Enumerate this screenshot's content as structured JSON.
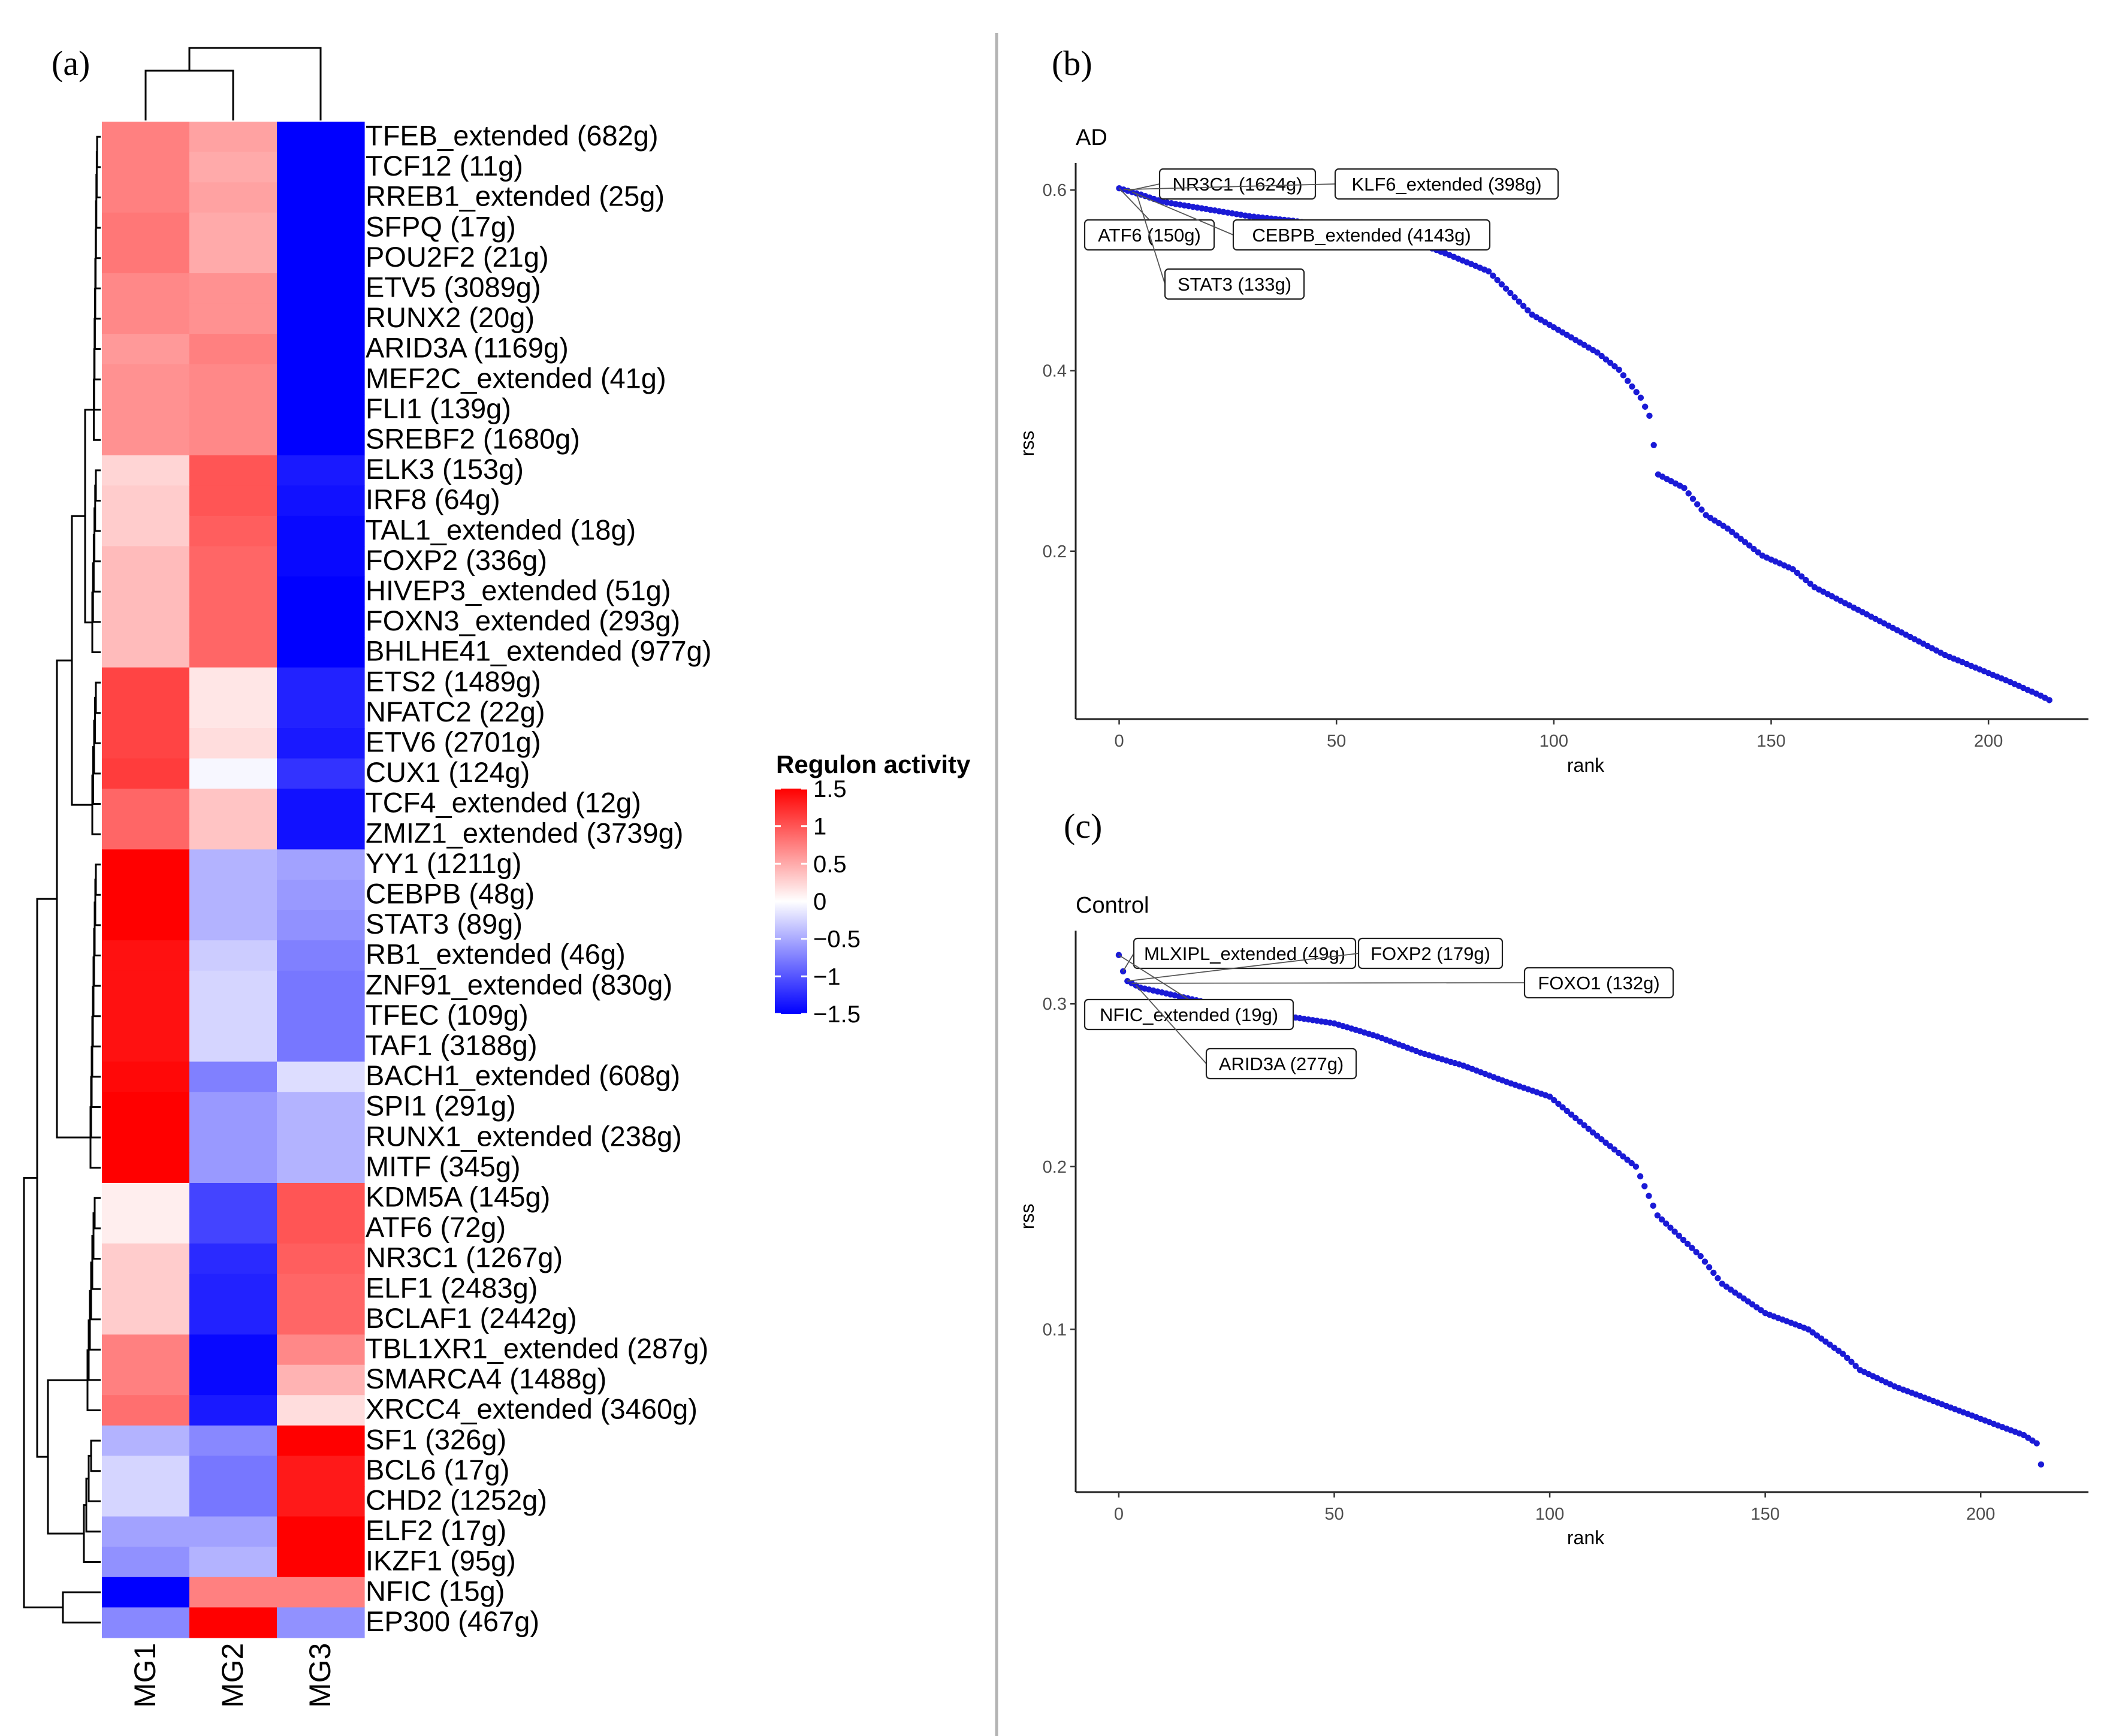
{
  "panels": {
    "a": {
      "label": "(a)"
    },
    "b": {
      "label": "(b)"
    },
    "c": {
      "label": "(c)"
    }
  },
  "colors": {
    "high": "#ff0000",
    "mid": "#ffffff",
    "low": "#0000ff",
    "point": "#1a1ad6",
    "divider": "#b4b4b4",
    "axis": "#222222",
    "tick_text": "#4d4d4d"
  },
  "chart_data": [
    {
      "type": "heatmap",
      "panel": "(a)",
      "columns": [
        "MG1",
        "MG2",
        "MG3"
      ],
      "rows": [
        {
          "name": "TFEB_extended (682g)",
          "values": [
            0.75,
            0.55,
            -1.5
          ]
        },
        {
          "name": "TCF12 (11g)",
          "values": [
            0.75,
            0.5,
            -1.5
          ]
        },
        {
          "name": "RREB1_extended (25g)",
          "values": [
            0.75,
            0.55,
            -1.5
          ]
        },
        {
          "name": "SFPQ (17g)",
          "values": [
            0.8,
            0.5,
            -1.5
          ]
        },
        {
          "name": "POU2F2 (21g)",
          "values": [
            0.8,
            0.5,
            -1.5
          ]
        },
        {
          "name": "ETV5 (3089g)",
          "values": [
            0.7,
            0.65,
            -1.5
          ]
        },
        {
          "name": "RUNX2 (20g)",
          "values": [
            0.7,
            0.65,
            -1.5
          ]
        },
        {
          "name": "ARID3A (1169g)",
          "values": [
            0.6,
            0.75,
            -1.5
          ]
        },
        {
          "name": "MEF2C_extended (41g)",
          "values": [
            0.65,
            0.7,
            -1.5
          ]
        },
        {
          "name": "FLI1 (139g)",
          "values": [
            0.65,
            0.7,
            -1.5
          ]
        },
        {
          "name": "SREBF2 (1680g)",
          "values": [
            0.65,
            0.7,
            -1.5
          ]
        },
        {
          "name": "ELK3 (153g)",
          "values": [
            0.25,
            1.0,
            -1.35
          ]
        },
        {
          "name": "IRF8 (64g)",
          "values": [
            0.3,
            1.0,
            -1.4
          ]
        },
        {
          "name": "TAL1_extended (18g)",
          "values": [
            0.3,
            0.95,
            -1.45
          ]
        },
        {
          "name": "FOXP2 (336g)",
          "values": [
            0.4,
            0.9,
            -1.45
          ]
        },
        {
          "name": "HIVEP3_extended (51g)",
          "values": [
            0.4,
            0.9,
            -1.5
          ]
        },
        {
          "name": "FOXN3_extended (293g)",
          "values": [
            0.4,
            0.9,
            -1.5
          ]
        },
        {
          "name": "BHLHE41_extended (977g)",
          "values": [
            0.4,
            0.9,
            -1.5
          ]
        },
        {
          "name": "ETS2 (1489g)",
          "values": [
            1.1,
            0.15,
            -1.3
          ]
        },
        {
          "name": "NFATC2 (22g)",
          "values": [
            1.1,
            0.15,
            -1.3
          ]
        },
        {
          "name": "ETV6 (2701g)",
          "values": [
            1.1,
            0.2,
            -1.35
          ]
        },
        {
          "name": "CUX1 (124g)",
          "values": [
            1.15,
            -0.05,
            -1.2
          ]
        },
        {
          "name": "TCF4_extended (12g)",
          "values": [
            0.9,
            0.35,
            -1.4
          ]
        },
        {
          "name": "ZMIZ1_extended (3739g)",
          "values": [
            0.9,
            0.35,
            -1.4
          ]
        },
        {
          "name": "YY1 (1211g)",
          "values": [
            1.5,
            -0.45,
            -0.55
          ]
        },
        {
          "name": "CEBPB (48g)",
          "values": [
            1.5,
            -0.45,
            -0.6
          ]
        },
        {
          "name": "STAT3 (89g)",
          "values": [
            1.5,
            -0.45,
            -0.65
          ]
        },
        {
          "name": "RB1_extended (46g)",
          "values": [
            1.4,
            -0.3,
            -0.75
          ]
        },
        {
          "name": "ZNF91_extended (830g)",
          "values": [
            1.4,
            -0.25,
            -0.8
          ]
        },
        {
          "name": "TFEC (109g)",
          "values": [
            1.4,
            -0.25,
            -0.8
          ]
        },
        {
          "name": "TAF1 (3188g)",
          "values": [
            1.4,
            -0.25,
            -0.8
          ]
        },
        {
          "name": "BACH1_extended (608g)",
          "values": [
            1.45,
            -0.75,
            -0.2
          ]
        },
        {
          "name": "SPI1 (291g)",
          "values": [
            1.5,
            -0.6,
            -0.45
          ]
        },
        {
          "name": "RUNX1_extended (238g)",
          "values": [
            1.5,
            -0.6,
            -0.45
          ]
        },
        {
          "name": "MITF (345g)",
          "values": [
            1.5,
            -0.6,
            -0.45
          ]
        },
        {
          "name": "KDM5A (145g)",
          "values": [
            0.1,
            -1.1,
            1.0
          ]
        },
        {
          "name": "ATF6 (72g)",
          "values": [
            0.1,
            -1.1,
            1.0
          ]
        },
        {
          "name": "NR3C1 (1267g)",
          "values": [
            0.3,
            -1.25,
            0.95
          ]
        },
        {
          "name": "ELF1 (2483g)",
          "values": [
            0.3,
            -1.3,
            0.9
          ]
        },
        {
          "name": "BCLAF1 (2442g)",
          "values": [
            0.3,
            -1.3,
            0.9
          ]
        },
        {
          "name": "TBL1XR1_extended (287g)",
          "values": [
            0.75,
            -1.45,
            0.7
          ]
        },
        {
          "name": "SMARCA4 (1488g)",
          "values": [
            0.75,
            -1.45,
            0.45
          ]
        },
        {
          "name": "XRCC4_extended (3460g)",
          "values": [
            0.85,
            -1.35,
            0.2
          ]
        },
        {
          "name": "SF1 (326g)",
          "values": [
            -0.45,
            -0.7,
            1.5
          ]
        },
        {
          "name": "BCL6 (17g)",
          "values": [
            -0.25,
            -0.8,
            1.35
          ]
        },
        {
          "name": "CHD2 (1252g)",
          "values": [
            -0.25,
            -0.8,
            1.35
          ]
        },
        {
          "name": "ELF2 (17g)",
          "values": [
            -0.55,
            -0.55,
            1.5
          ]
        },
        {
          "name": "IKZF1 (95g)",
          "values": [
            -0.65,
            -0.45,
            1.5
          ]
        },
        {
          "name": "NFIC (15g)",
          "values": [
            -1.5,
            0.75,
            0.75
          ]
        },
        {
          "name": "EP300 (467g)",
          "values": [
            -0.7,
            1.5,
            -0.65
          ]
        }
      ],
      "legend": {
        "title": "Regulon activity",
        "ticks": [
          1.5,
          1,
          0.5,
          0,
          -0.5,
          -1,
          -1.5
        ],
        "tick_labels": [
          "1.5",
          "1",
          "0.5",
          "0",
          "−0.5",
          "−1",
          "−1.5"
        ],
        "range": [
          -1.5,
          1.5
        ]
      }
    },
    {
      "type": "scatter",
      "panel": "(b)",
      "title": "AD",
      "xlabel": "rank",
      "ylabel": "rss",
      "xlim": [
        -10,
        223
      ],
      "ylim": [
        0.014,
        0.63
      ],
      "xticks": [
        0,
        50,
        100,
        150,
        200
      ],
      "yticks": [
        0.2,
        0.4,
        0.6
      ],
      "ytick_labels": [
        "0.2",
        "0.4",
        "0.6"
      ],
      "n_points": 215,
      "curve": [
        [
          0,
          0.602
        ],
        [
          5,
          0.595
        ],
        [
          10,
          0.587
        ],
        [
          20,
          0.579
        ],
        [
          30,
          0.571
        ],
        [
          40,
          0.566
        ],
        [
          50,
          0.559
        ],
        [
          60,
          0.551
        ],
        [
          70,
          0.539
        ],
        [
          75,
          0.53
        ],
        [
          85,
          0.51
        ],
        [
          95,
          0.462
        ],
        [
          100,
          0.448
        ],
        [
          110,
          0.42
        ],
        [
          115,
          0.401
        ],
        [
          120,
          0.37
        ],
        [
          122,
          0.35
        ],
        [
          124,
          0.285
        ],
        [
          130,
          0.27
        ],
        [
          135,
          0.24
        ],
        [
          140,
          0.225
        ],
        [
          148,
          0.195
        ],
        [
          155,
          0.18
        ],
        [
          160,
          0.16
        ],
        [
          170,
          0.135
        ],
        [
          180,
          0.11
        ],
        [
          190,
          0.085
        ],
        [
          200,
          0.065
        ],
        [
          205,
          0.055
        ],
        [
          212,
          0.04
        ],
        [
          214,
          0.035
        ]
      ],
      "annotations": [
        {
          "label": "NR3C1 (1624g)",
          "rank": 2
        },
        {
          "label": "KLF6_extended (398g)",
          "rank": 1
        },
        {
          "label": "ATF6 (150g)",
          "rank": 0
        },
        {
          "label": "CEBPB_extended (4143g)",
          "rank": 3
        },
        {
          "label": "STAT3 (133g)",
          "rank": 4
        }
      ]
    },
    {
      "type": "scatter",
      "panel": "(c)",
      "title": "Control",
      "xlabel": "rank",
      "ylabel": "rss",
      "xlim": [
        -10,
        225
      ],
      "ylim": [
        0.0,
        0.345
      ],
      "xticks": [
        0,
        50,
        100,
        150,
        200
      ],
      "yticks": [
        0.1,
        0.2,
        0.3
      ],
      "ytick_labels": [
        "0.1",
        "0.2",
        "0.3"
      ],
      "n_points": 215,
      "curve": [
        [
          0,
          0.33
        ],
        [
          1,
          0.32
        ],
        [
          2,
          0.314
        ],
        [
          5,
          0.31
        ],
        [
          10,
          0.307
        ],
        [
          20,
          0.301
        ],
        [
          30,
          0.297
        ],
        [
          40,
          0.292
        ],
        [
          50,
          0.288
        ],
        [
          60,
          0.28
        ],
        [
          70,
          0.27
        ],
        [
          80,
          0.262
        ],
        [
          90,
          0.252
        ],
        [
          100,
          0.243
        ],
        [
          110,
          0.221
        ],
        [
          120,
          0.2
        ],
        [
          125,
          0.17
        ],
        [
          135,
          0.145
        ],
        [
          140,
          0.128
        ],
        [
          150,
          0.11
        ],
        [
          160,
          0.1
        ],
        [
          168,
          0.085
        ],
        [
          172,
          0.075
        ],
        [
          180,
          0.065
        ],
        [
          190,
          0.055
        ],
        [
          200,
          0.045
        ],
        [
          210,
          0.035
        ],
        [
          213,
          0.03
        ],
        [
          214,
          0.017
        ]
      ],
      "annotations": [
        {
          "label": "MLXIPL_extended (49g)",
          "rank": 1
        },
        {
          "label": "FOXP2 (179g)",
          "rank": 2
        },
        {
          "label": "FOXO1 (132g)",
          "rank": 3
        },
        {
          "label": "NFIC_extended (19g)",
          "rank": 0
        },
        {
          "label": "ARID3A (277g)",
          "rank": 4
        }
      ]
    }
  ]
}
